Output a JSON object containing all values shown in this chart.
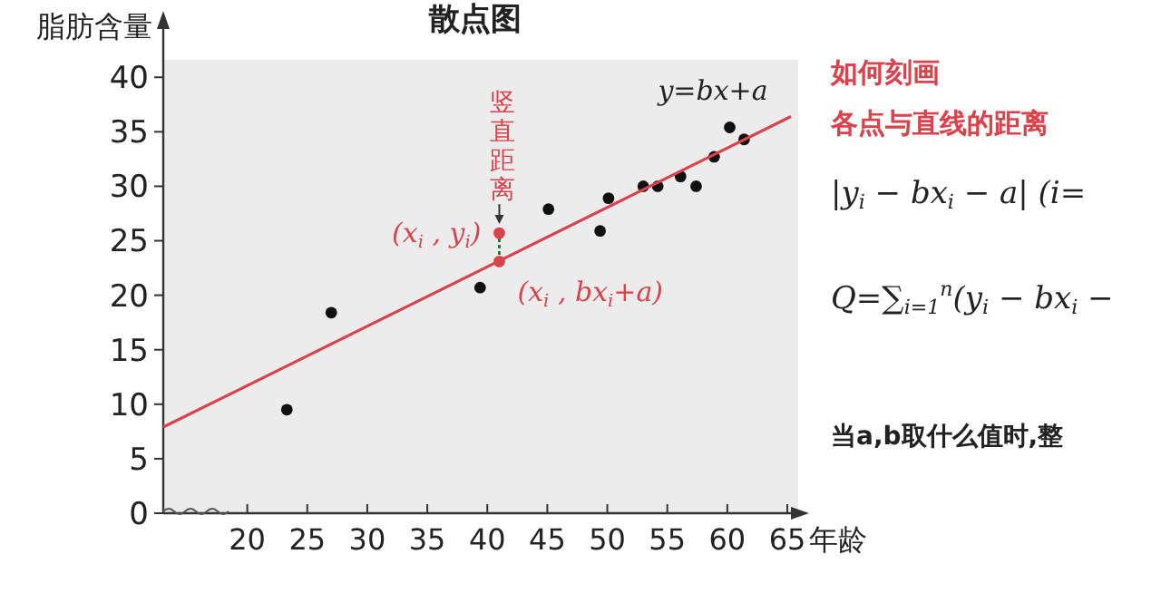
{
  "chart_data": {
    "type": "scatter",
    "title": "散点图",
    "xlabel": "年龄",
    "ylabel": "脂肪含量",
    "xlim": [
      13,
      65.3
    ],
    "ylim": [
      0,
      41.6
    ],
    "xticks": [
      20,
      25,
      30,
      35,
      40,
      45,
      50,
      55,
      60,
      65
    ],
    "yticks": [
      0,
      5,
      10,
      15,
      20,
      25,
      30,
      35,
      40
    ],
    "grid": false,
    "marker": "circle",
    "series": [
      {
        "color": "#111111",
        "x": [
          23.3,
          27.0,
          39.4,
          45.1,
          49.4,
          50.1,
          53.0,
          54.2,
          56.1,
          57.4,
          58.9,
          60.2,
          61.4
        ],
        "values": [
          9.5,
          18.4,
          20.7,
          27.9,
          25.9,
          28.9,
          30,
          30,
          30.9,
          30,
          32.7,
          35.4,
          34.3
        ]
      },
      {
        "color": "#d9434b",
        "x": [
          41,
          41
        ],
        "values": [
          25.7,
          23.1
        ]
      },
      {
        "type": "line",
        "color": "#d9434b",
        "line_style": "solid",
        "marker": "none",
        "x": [
          13,
          65.3
        ],
        "values": [
          7.9,
          36.4
        ]
      }
    ],
    "annotations": [
      "y=bx+a",
      "竖直距离",
      {
        "text": "(x$_{i}$ , y$_{i}$)",
        "x": 41,
        "y": 25.7
      },
      {
        "text": "(x$_{i}$ , bx$_{i}$+a)",
        "x": 41,
        "y": 23.1
      },
      "如何刻画",
      "各点与直线的距离",
      "|y$_{i}$ − bx$_{i}$ − a|  (i=",
      "Q=∑$_{i=1}$$^{n}$(y$_{i}$ − bx$_{i}$ −",
      "当a,b取什么值时,整"
    ]
  }
}
